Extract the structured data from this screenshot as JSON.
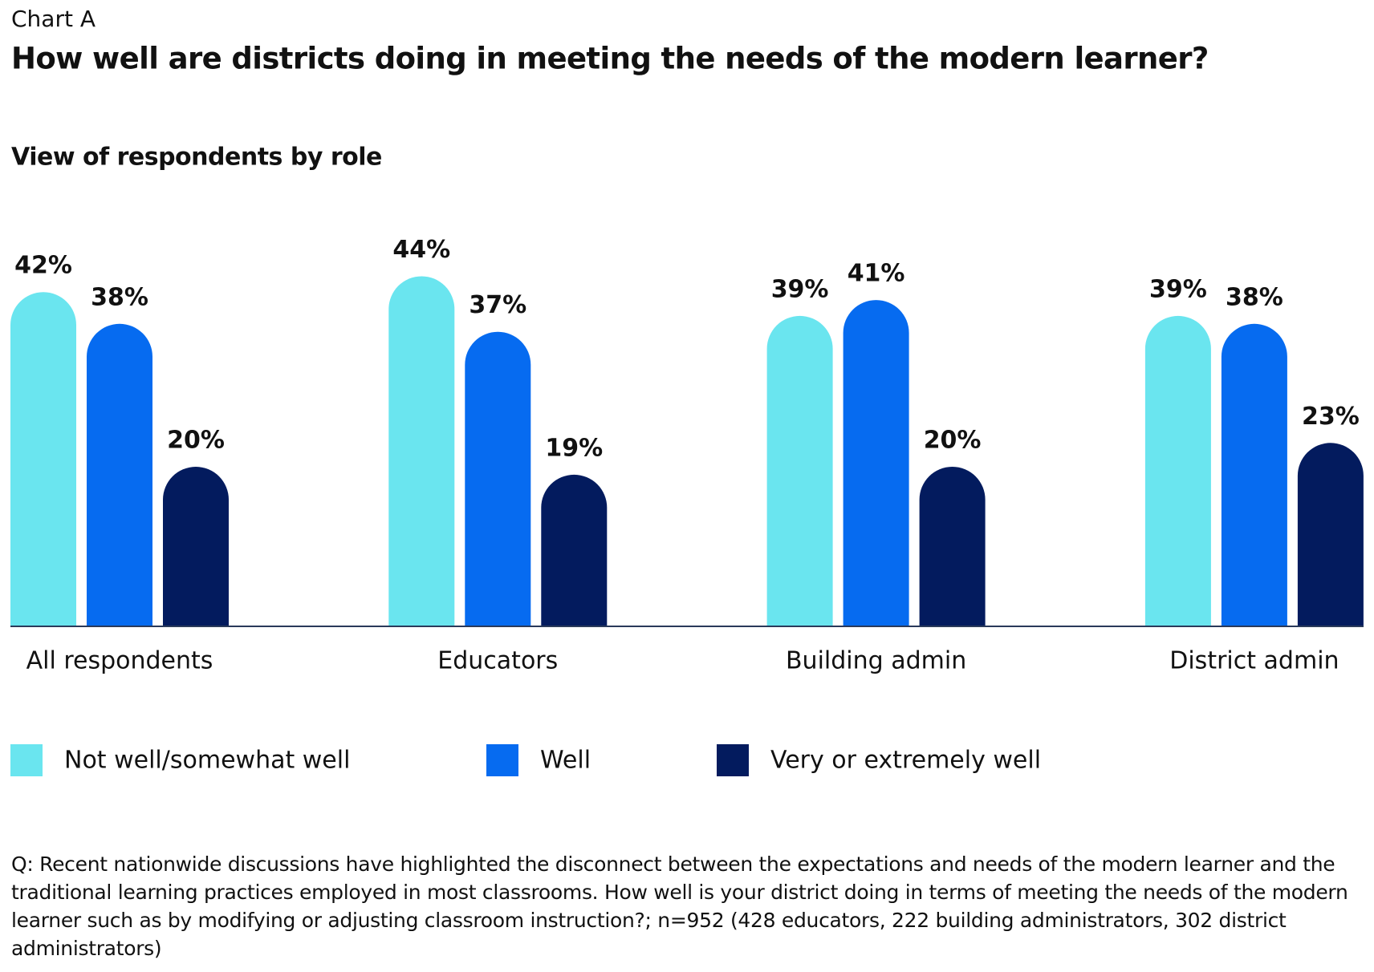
{
  "chart_data": {
    "type": "bar",
    "kicker": "Chart A",
    "title": "How well are districts doing in meeting the needs of the modern learner?",
    "subtitle": "View of respondents by role",
    "categories": [
      "All respondents",
      "Educators",
      "Building admin",
      "District admin"
    ],
    "series": [
      {
        "name": "Not well/somewhat well",
        "color": "#6ae5ef",
        "values": [
          42,
          44,
          39,
          39
        ],
        "value_labels": [
          "42%",
          "44%",
          "39%",
          "39%"
        ]
      },
      {
        "name": "Well",
        "color": "#066bf0",
        "values": [
          38,
          37,
          41,
          38
        ],
        "value_labels": [
          "38%",
          "37%",
          "41%",
          "38%"
        ]
      },
      {
        "name": "Very or extremely well",
        "color": "#031b5e",
        "values": [
          20,
          19,
          20,
          23
        ],
        "value_labels": [
          "20%",
          "19%",
          "20%",
          "23%"
        ]
      }
    ],
    "note": "Q: Recent nationwide discussions have highlighted the disconnect between the expectations and needs of the modern learner and the traditional learning practices employed in most classrooms. How well is your district doing in terms of meeting the needs of the modern learner such as by modifying or adjusting classroom instruction?; n=952 (428 educators, 222 building administrators, 302 district administrators)"
  }
}
